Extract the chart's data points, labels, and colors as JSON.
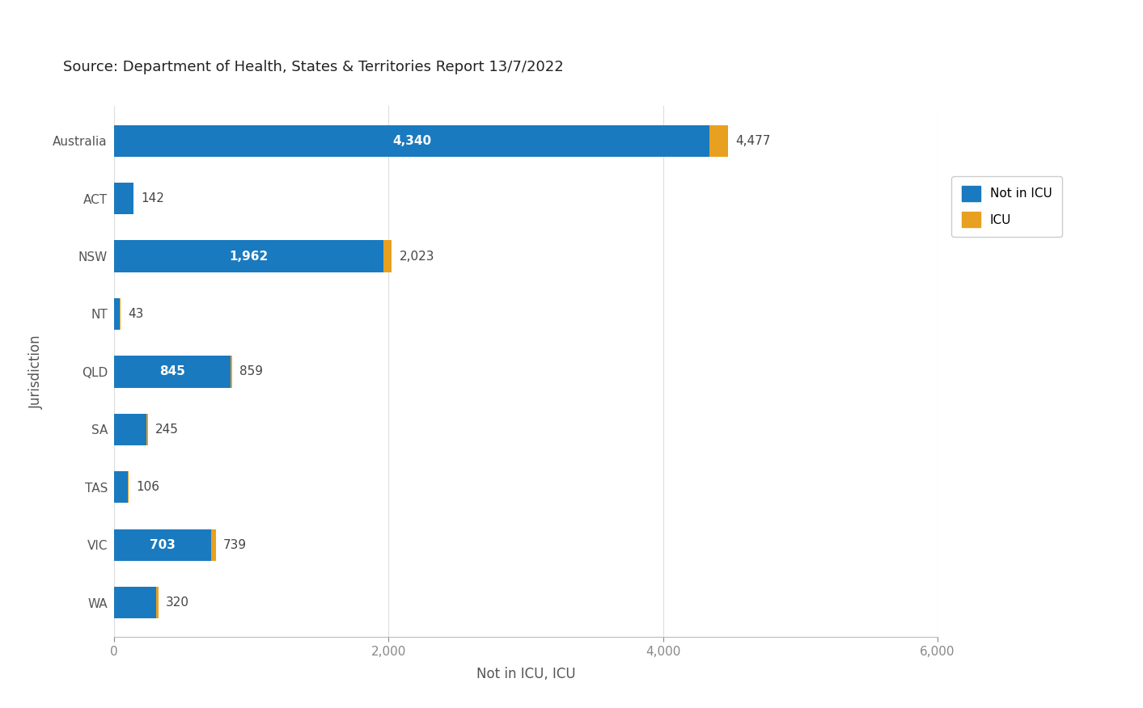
{
  "categories": [
    "Australia",
    "ACT",
    "NSW",
    "NT",
    "QLD",
    "SA",
    "TAS",
    "VIC",
    "WA"
  ],
  "not_in_icu": [
    4340,
    137,
    1962,
    41,
    845,
    232,
    101,
    703,
    307
  ],
  "icu": [
    137,
    5,
    61,
    2,
    14,
    13,
    5,
    36,
    13
  ],
  "total": [
    4477,
    142,
    2023,
    43,
    859,
    245,
    106,
    739,
    320
  ],
  "color_not_icu": "#1a7abf",
  "color_icu": "#e8a020",
  "source_text": "Source: Department of Health, States & Territories Report 13/7/2022",
  "xlabel": "Not in ICU, ICU",
  "ylabel": "Jurisdiction",
  "xlim": [
    0,
    6000
  ],
  "xticks": [
    0,
    2000,
    4000,
    6000
  ],
  "xtick_labels": [
    "0",
    "2,000",
    "4,000",
    "6,000"
  ],
  "legend_not_icu": "Not in ICU",
  "legend_icu": "ICU",
  "bar_height": 0.55,
  "background_color": "#ffffff",
  "fig_width": 14.13,
  "fig_height": 8.76,
  "source_fontsize": 13,
  "label_fontsize": 11,
  "tick_fontsize": 11,
  "axis_label_fontsize": 12
}
